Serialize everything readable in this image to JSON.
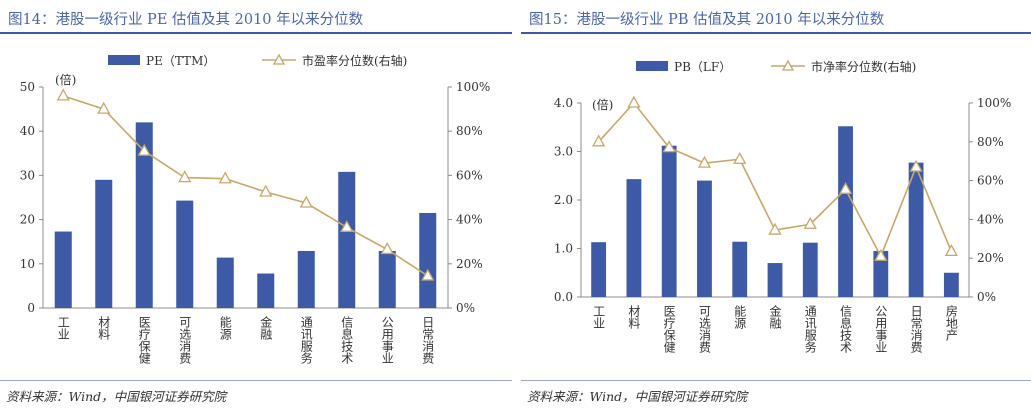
{
  "chart_data": [
    {
      "type": "bar",
      "title": "图14：港股一级行业 PE 估值及其 2010 年以来分位数",
      "source": "资料来源：Wind，中国银河证券研究院",
      "categories": [
        "工业",
        "材料",
        "医疗保健",
        "可选消费",
        "能源",
        "金融",
        "通讯服务",
        "信息技术",
        "公用事业",
        "日常消费"
      ],
      "series": [
        {
          "name": "PE（TTM）",
          "kind": "bar",
          "axis": "left",
          "color": "#3c5aa6",
          "values": [
            17.3,
            29.0,
            42.0,
            24.3,
            11.4,
            7.8,
            12.9,
            30.8,
            12.9,
            21.5
          ]
        },
        {
          "name": "市盈率分位数(右轴)",
          "kind": "line",
          "axis": "right",
          "color": "#c8a86a",
          "values": [
            0.96,
            0.9,
            0.71,
            0.59,
            0.585,
            0.525,
            0.475,
            0.365,
            0.265,
            0.145
          ]
        }
      ],
      "y_left": {
        "unit_label": "(倍)",
        "range": [
          0,
          50
        ],
        "ticks": [
          "0",
          "10",
          "20",
          "30",
          "40",
          "50"
        ]
      },
      "y_right": {
        "range": [
          0,
          1
        ],
        "ticks": [
          "0%",
          "20%",
          "40%",
          "60%",
          "80%",
          "100%"
        ]
      },
      "legend": "top-center",
      "grid": false
    },
    {
      "type": "bar",
      "title": "图15：港股一级行业 PB 估值及其 2010 年以来分位数",
      "source": "资料来源：Wind，中国银河证券研究院",
      "categories": [
        "工业",
        "材料",
        "医疗保健",
        "可选消费",
        "能源",
        "金融",
        "通讯服务",
        "信息技术",
        "公用事业",
        "日常消费",
        "房地产"
      ],
      "series": [
        {
          "name": "PB（LF）",
          "kind": "bar",
          "axis": "left",
          "color": "#3c5aa6",
          "values": [
            1.13,
            2.43,
            3.12,
            2.4,
            1.14,
            0.7,
            1.12,
            3.52,
            0.95,
            2.77,
            0.5
          ]
        },
        {
          "name": "市净率分位数(右轴)",
          "kind": "line",
          "axis": "right",
          "color": "#c8a86a",
          "values": [
            0.8,
            1.0,
            0.77,
            0.69,
            0.71,
            0.345,
            0.375,
            0.555,
            0.21,
            0.67,
            0.235
          ]
        }
      ],
      "y_left": {
        "unit_label": "(倍)",
        "range": [
          0,
          4
        ],
        "ticks": [
          "0.0",
          "1.0",
          "2.0",
          "3.0",
          "4.0"
        ]
      },
      "y_right": {
        "range": [
          0,
          1
        ],
        "ticks": [
          "0%",
          "20%",
          "40%",
          "60%",
          "80%",
          "100%"
        ]
      },
      "legend": "top-center",
      "grid": false
    }
  ]
}
